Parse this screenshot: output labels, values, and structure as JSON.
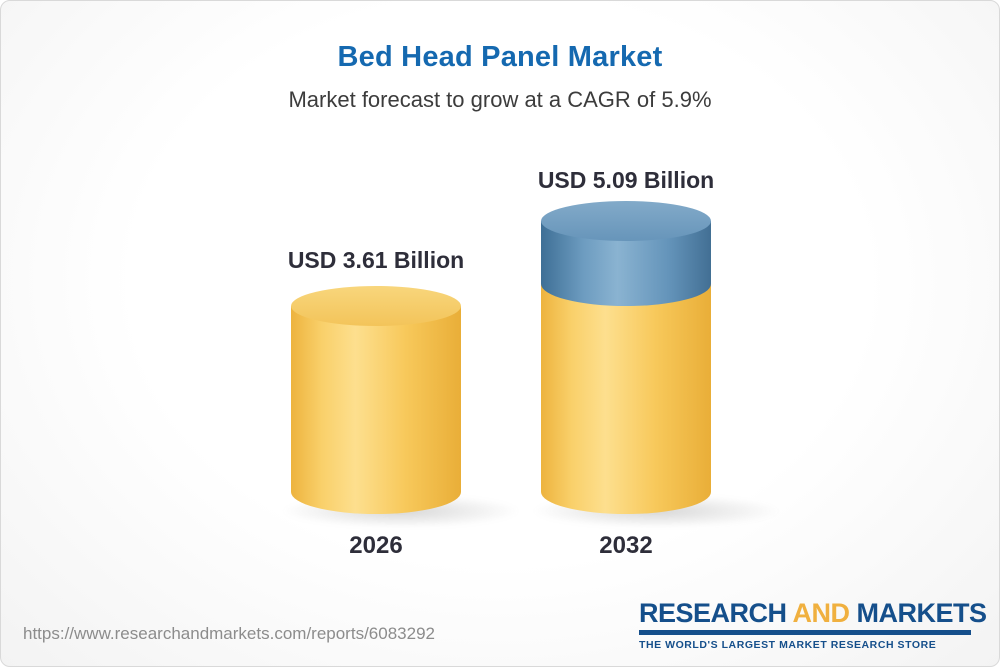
{
  "chart_data": {
    "type": "bar",
    "categories": [
      "2026",
      "2032"
    ],
    "values": [
      3.61,
      5.09
    ],
    "value_labels": [
      "USD 3.61 Billion",
      "USD 5.09 Billion"
    ],
    "unit": "USD Billion",
    "title": "Bed Head Panel Market",
    "subtitle": "Market forecast to grow at a CAGR of 5.9%",
    "cagr_percent": 5.9,
    "ylim": [
      0,
      5.5
    ],
    "grid": false,
    "legend": false,
    "colors": {
      "base_segment": "#F6C85A",
      "growth_segment": "#6494BA",
      "title_blue": "#1569B0",
      "label_dark": "#2E2E3A"
    }
  },
  "footer": {
    "url": "https://www.researchandmarkets.com/reports/6083292",
    "logo": {
      "research": "RESEARCH",
      "and": "AND",
      "markets": "MARKETS",
      "tagline": "THE WORLD'S LARGEST MARKET RESEARCH STORE",
      "brand_blue": "#154F8B",
      "brand_yellow": "#F0B03F"
    }
  }
}
